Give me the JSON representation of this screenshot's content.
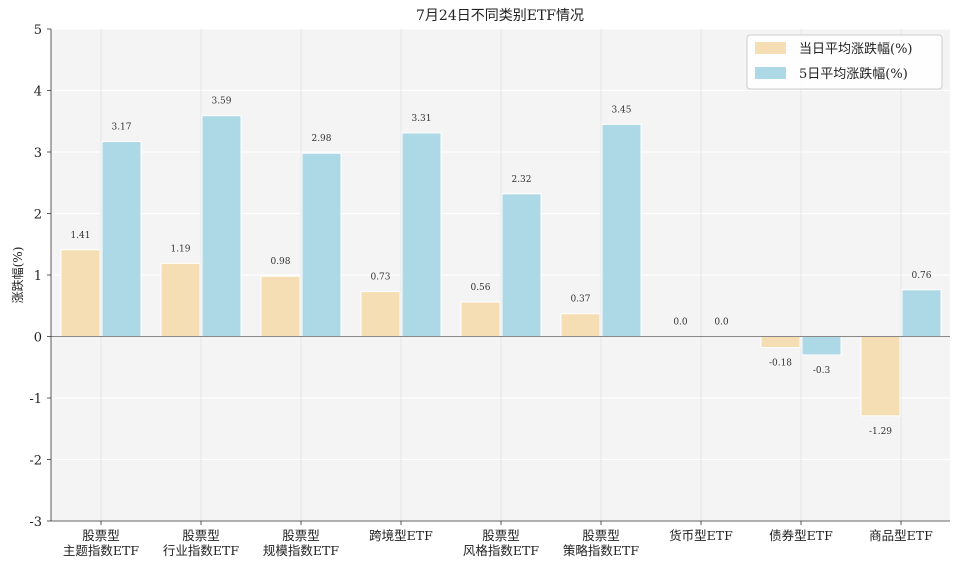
{
  "chart_data": {
    "type": "bar",
    "title": "7月24日不同类别ETF情况",
    "ylabel": "涨跌幅(%)",
    "xlabel": "",
    "ylim": [
      -3,
      5
    ],
    "yticks": [
      "5",
      "4",
      "3",
      "2",
      "1",
      "0",
      "-1",
      "-2",
      "-3"
    ],
    "grid": true,
    "legend_position": "top-right",
    "categories": [
      [
        "股票型",
        "主题指数ETF"
      ],
      [
        "股票型",
        "行业指数ETF"
      ],
      [
        "股票型",
        "规模指数ETF"
      ],
      [
        "跨境型ETF"
      ],
      [
        "股票型",
        "风格指数ETF"
      ],
      [
        "股票型",
        "策略指数ETF"
      ],
      [
        "货币型ETF"
      ],
      [
        "债券型ETF"
      ],
      [
        "商品型ETF"
      ]
    ],
    "series": [
      {
        "name": "当日平均涨跌幅(%)",
        "color": "#f5deb3",
        "values": [
          1.41,
          1.19,
          0.98,
          0.73,
          0.56,
          0.37,
          0.0,
          -0.18,
          -1.29
        ],
        "labels": [
          "1.41",
          "1.19",
          "0.98",
          "0.73",
          "0.56",
          "0.37",
          "0.0",
          "-0.18",
          "-1.29"
        ]
      },
      {
        "name": "5日平均涨跌幅(%)",
        "color": "#add8e6",
        "values": [
          3.17,
          3.59,
          2.98,
          3.31,
          2.32,
          3.45,
          0.0,
          -0.3,
          0.76
        ],
        "labels": [
          "3.17",
          "3.59",
          "2.98",
          "3.31",
          "2.32",
          "3.45",
          "0.0",
          "-0.3",
          "0.76"
        ]
      }
    ]
  }
}
